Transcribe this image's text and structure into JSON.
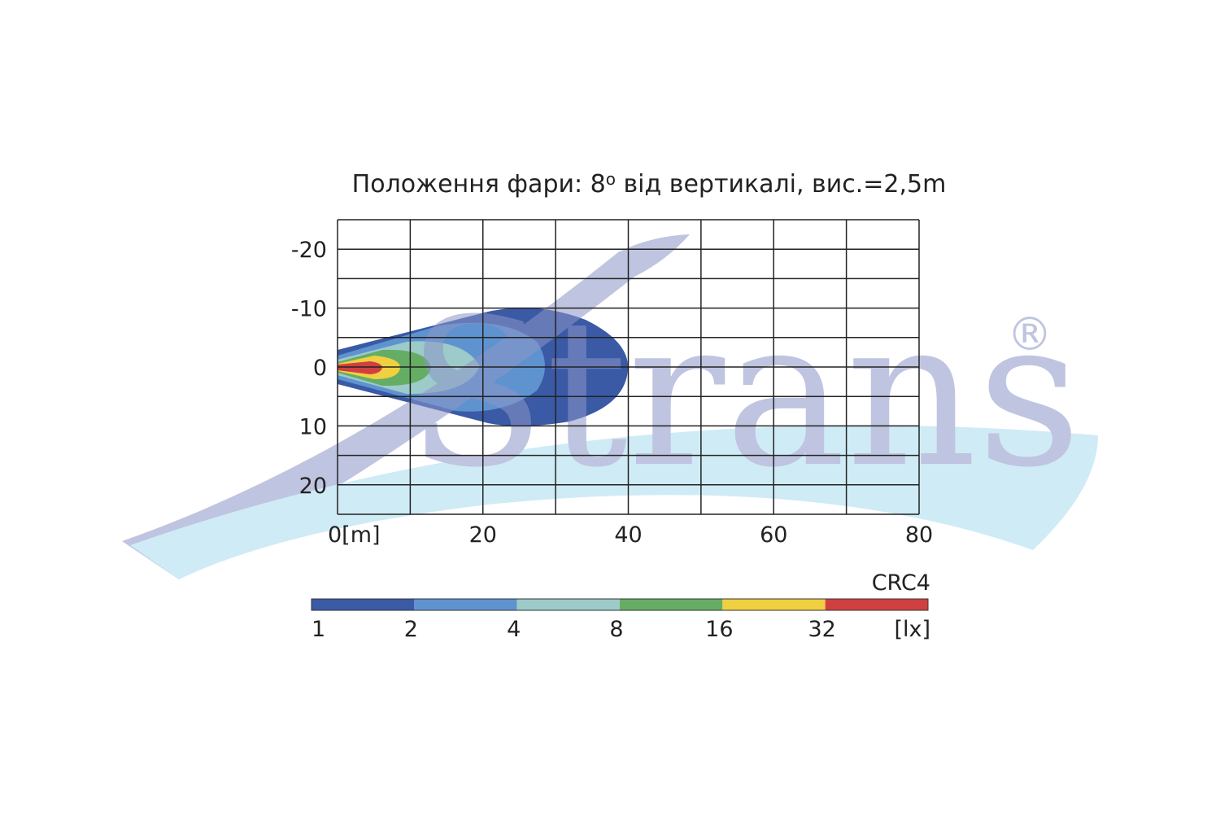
{
  "title": [
    "Положення фари: 8",
    "o",
    " від вертикалі, вис.=2,5m"
  ],
  "plot": {
    "xlim": [
      0,
      80
    ],
    "ylim": [
      -25,
      25
    ],
    "xticks": [
      {
        "value": 0,
        "label": "0[m]"
      },
      20,
      40,
      60,
      80
    ],
    "yticks": [
      -20,
      -10,
      0,
      10,
      20
    ],
    "xgrid": [
      0,
      10,
      20,
      30,
      40,
      50,
      60,
      70,
      80
    ],
    "ygrid": [
      -25,
      -20,
      -15,
      -10,
      -5,
      0,
      5,
      10,
      15,
      20,
      25
    ]
  },
  "legend": {
    "name": "CRC4",
    "levels": [
      1,
      2,
      4,
      8,
      16,
      32
    ],
    "unit": "[lx]",
    "colors": [
      "#3a5aa6",
      "#5f93d0",
      "#9ccbc9",
      "#65ad64",
      "#f0d040",
      "#d04040"
    ]
  },
  "watermark": {
    "text": "Strans",
    "mark": "®"
  }
}
